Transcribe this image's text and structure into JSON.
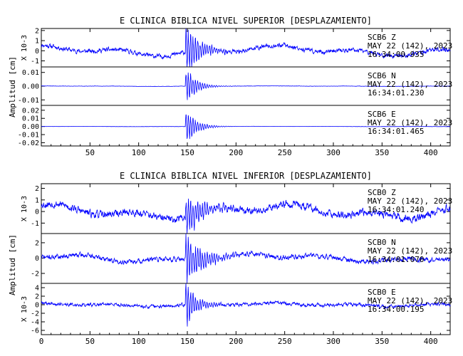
{
  "chart_data": [
    {
      "type": "line",
      "title": "E CLINICA BIBLICA NIVEL SUPERIOR [DESPLAZAMIENTO]",
      "xlim": [
        0,
        420
      ],
      "x_ticks": [
        "50",
        "100",
        "150",
        "200",
        "250",
        "300",
        "350",
        "400"
      ],
      "ylabel": "Amplitud [cm]",
      "line_color": "#0000ff",
      "channels": [
        {
          "station": "SCB6",
          "comp": "Z",
          "date": "MAY 22 (142), 2023",
          "time": "16:34:00.935",
          "multiplier": "X 10-3",
          "ylim": [
            -1.6,
            2.2
          ],
          "ticks": [
            "2",
            "1",
            "0",
            "-1"
          ],
          "noise": 0.38,
          "burst": 2.0,
          "decay": 14,
          "drift": 0.55,
          "seed": 11
        },
        {
          "station": "SCB6",
          "comp": "N",
          "date": "MAY 22 (142), 2023",
          "time": "16:34:01.230",
          "multiplier": "",
          "ylim": [
            -0.014,
            0.014
          ],
          "ticks": [
            "0.01",
            "0.00",
            "-0.01"
          ],
          "noise": 0.0002,
          "burst": 0.012,
          "decay": 10,
          "drift": 0.0002,
          "seed": 23
        },
        {
          "station": "SCB6",
          "comp": "E",
          "date": "MAY 22 (142), 2023",
          "time": "16:34:01.465",
          "multiplier": "",
          "ylim": [
            -0.024,
            0.026
          ],
          "ticks": [
            "0.02",
            "0.01",
            "0.00",
            "-0.01",
            "-0.02"
          ],
          "noise": 0.0002,
          "burst": 0.02,
          "decay": 10,
          "drift": 0.0002,
          "seed": 37
        }
      ]
    },
    {
      "type": "line",
      "title": "E CLINICA BIBLICA NIVEL INFERIOR [DESPLAZAMIENTO]",
      "xlim": [
        0,
        420
      ],
      "x_ticks": [
        "0",
        "50",
        "100",
        "150",
        "200",
        "250",
        "300",
        "350",
        "400"
      ],
      "ylabel": "Amplitud [cm]",
      "line_color": "#0000ff",
      "channels": [
        {
          "station": "SCB0",
          "comp": "Z",
          "date": "MAY 22 (142), 2023",
          "time": "16:34:01.240",
          "multiplier": "X 10-3",
          "ylim": [
            -1.9,
            2.4
          ],
          "ticks": [
            "2",
            "1",
            "0",
            "-1"
          ],
          "noise": 0.55,
          "burst": 1.6,
          "decay": 18,
          "drift": 0.7,
          "seed": 53
        },
        {
          "station": "SCB0",
          "comp": "N",
          "date": "MAY 22 (142), 2023",
          "time": "16:34:01.070",
          "multiplier": "",
          "ylim": [
            -3.3,
            3.2
          ],
          "ticks": [
            "2",
            "0",
            "-2"
          ],
          "noise": 0.55,
          "burst": 2.8,
          "decay": 18,
          "drift": 0.6,
          "seed": 71
        },
        {
          "station": "SCB0",
          "comp": "E",
          "date": "MAY 22 (142), 2023",
          "time": "16:34:00.195",
          "multiplier": "X 10-3",
          "ylim": [
            -7,
            5
          ],
          "ticks": [
            "4",
            "2",
            "0",
            "-2",
            "-4",
            "-6"
          ],
          "noise": 0.7,
          "burst": 5.0,
          "decay": 10,
          "drift": 0.4,
          "seed": 89
        }
      ]
    }
  ]
}
